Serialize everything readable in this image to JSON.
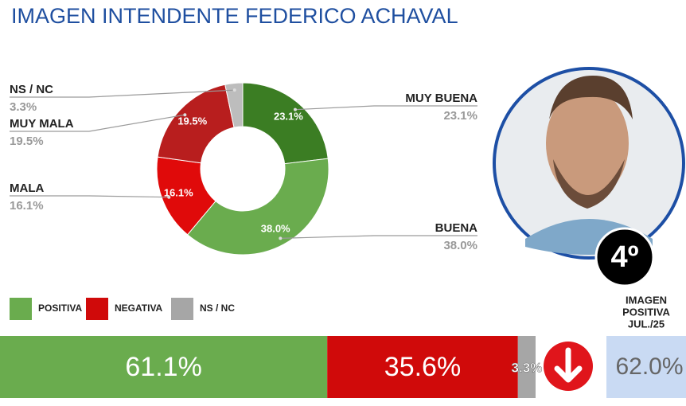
{
  "title": "IMAGEN INTENDENTE  FEDERICO ACHAVAL",
  "chart_data": [
    {
      "type": "pie",
      "donut": true,
      "categories": [
        "MUY BUENA",
        "BUENA",
        "MALA",
        "MUY MALA",
        "NS / NC"
      ],
      "values": [
        23.1,
        38.0,
        16.1,
        19.5,
        3.3
      ],
      "value_labels": [
        "23.1%",
        "38.0%",
        "16.1%",
        "19.5%",
        "3.3%"
      ],
      "colors": [
        "#3b7d23",
        "#6aac4e",
        "#e00a0a",
        "#b81e1e",
        "#bdbdbd"
      ]
    },
    {
      "type": "stacked-bar",
      "categories": [
        "POSITIVA",
        "NEGATIVA",
        "NS / NC"
      ],
      "values": [
        61.1,
        35.6,
        3.3
      ],
      "value_labels": [
        "61.1%",
        "35.6%",
        "3.3%"
      ],
      "colors": [
        "#6aac4e",
        "#d00a0a",
        "#a6a6a6"
      ]
    }
  ],
  "rank": "4º",
  "previous": {
    "label_lines": [
      "IMAGEN",
      "POSITIVA",
      "JUL./25"
    ],
    "value": 62.0,
    "value_label": "62.0%"
  }
}
